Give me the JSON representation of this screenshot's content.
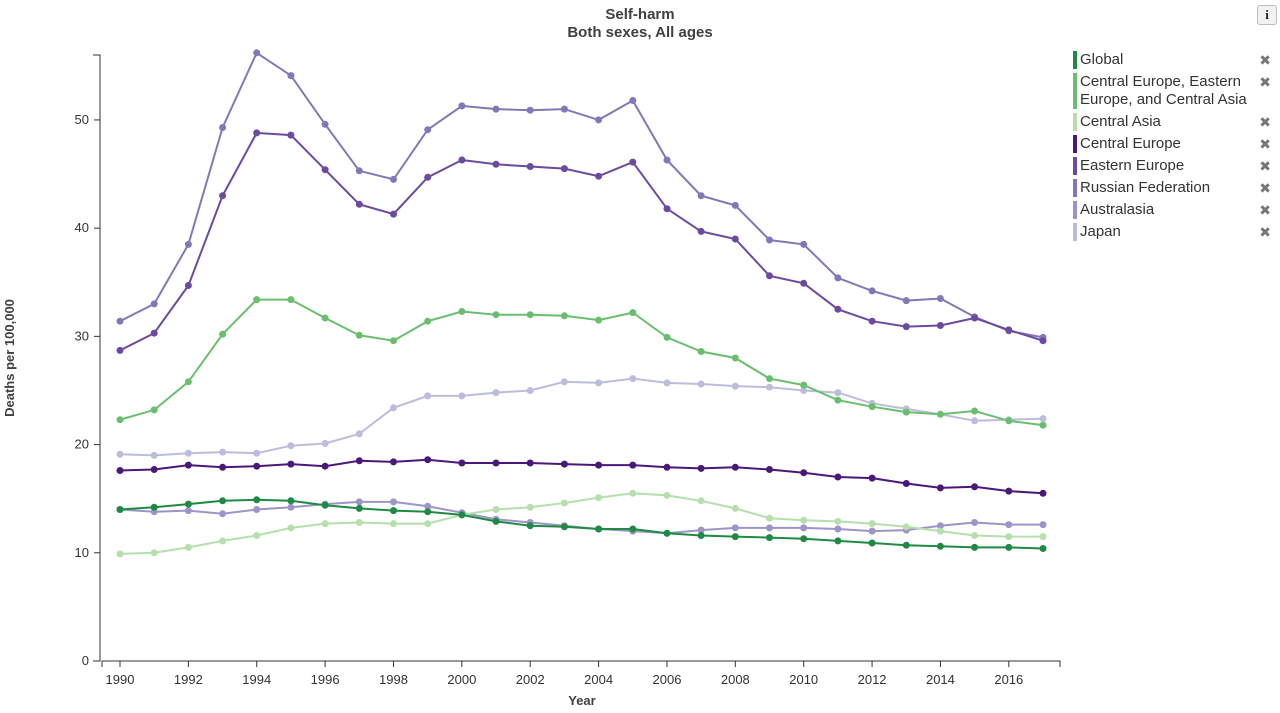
{
  "info_button": "i",
  "remove_symbol": "✖",
  "chart_data": {
    "type": "line",
    "title": "Self-harm",
    "subtitle": "Both sexes, All ages",
    "xlabel": "Year",
    "ylabel": "Deaths per 100,000",
    "xlim": [
      1990,
      2017
    ],
    "ylim": [
      0,
      56
    ],
    "x_ticks": [
      1990,
      1992,
      1994,
      1996,
      1998,
      2000,
      2002,
      2004,
      2006,
      2008,
      2010,
      2012,
      2014,
      2016
    ],
    "y_ticks": [
      0,
      10,
      20,
      30,
      40,
      50
    ],
    "x": [
      1990,
      1991,
      1992,
      1993,
      1994,
      1995,
      1996,
      1997,
      1998,
      1999,
      2000,
      2001,
      2002,
      2003,
      2004,
      2005,
      2006,
      2007,
      2008,
      2009,
      2010,
      2011,
      2012,
      2013,
      2014,
      2015,
      2016,
      2017
    ],
    "grid": false,
    "legend_position": "right",
    "series": [
      {
        "name": "Global",
        "color": "#1e8a44",
        "values": [
          14.0,
          14.2,
          14.5,
          14.8,
          14.9,
          14.8,
          14.4,
          14.1,
          13.9,
          13.8,
          13.5,
          12.9,
          12.5,
          12.4,
          12.2,
          12.2,
          11.8,
          11.6,
          11.5,
          11.4,
          11.3,
          11.1,
          10.9,
          10.7,
          10.6,
          10.5,
          10.5,
          10.4
        ]
      },
      {
        "name": "Central Europe, Eastern Europe, and Central Asia",
        "color": "#6abf6e",
        "values": [
          22.3,
          23.2,
          25.8,
          30.2,
          33.4,
          33.4,
          31.7,
          30.1,
          29.6,
          31.4,
          32.3,
          32.0,
          32.0,
          31.9,
          31.5,
          32.2,
          29.9,
          28.6,
          28.0,
          26.1,
          25.5,
          24.1,
          23.5,
          23.0,
          22.8,
          23.1,
          22.2,
          21.8
        ]
      },
      {
        "name": "Central Asia",
        "color": "#b5e0ac",
        "values": [
          9.9,
          10.0,
          10.5,
          11.1,
          11.6,
          12.3,
          12.7,
          12.8,
          12.7,
          12.7,
          13.5,
          14.0,
          14.2,
          14.6,
          15.1,
          15.5,
          15.3,
          14.8,
          14.1,
          13.2,
          13.0,
          12.9,
          12.7,
          12.4,
          12.0,
          11.6,
          11.5,
          11.5
        ]
      },
      {
        "name": "Central Europe",
        "color": "#4a1878",
        "values": [
          17.6,
          17.7,
          18.1,
          17.9,
          18.0,
          18.2,
          18.0,
          18.5,
          18.4,
          18.6,
          18.3,
          18.3,
          18.3,
          18.2,
          18.1,
          18.1,
          17.9,
          17.8,
          17.9,
          17.7,
          17.4,
          17.0,
          16.9,
          16.4,
          16.0,
          16.1,
          15.7,
          15.5
        ]
      },
      {
        "name": "Eastern Europe",
        "color": "#6b4aa0",
        "values": [
          28.7,
          30.3,
          34.7,
          43.0,
          48.8,
          48.6,
          45.4,
          42.2,
          41.3,
          44.7,
          46.3,
          45.9,
          45.7,
          45.5,
          44.8,
          46.1,
          41.8,
          39.7,
          39.0,
          35.6,
          34.9,
          32.5,
          31.4,
          30.9,
          31.0,
          31.7,
          30.6,
          29.6
        ]
      },
      {
        "name": "Russian Federation",
        "color": "#8178b8",
        "values": [
          31.4,
          33.0,
          38.5,
          49.3,
          56.2,
          54.1,
          49.6,
          45.3,
          44.5,
          49.1,
          51.3,
          51.0,
          50.9,
          51.0,
          50.0,
          51.8,
          46.3,
          43.0,
          42.1,
          38.9,
          38.5,
          35.4,
          34.2,
          33.3,
          33.5,
          31.8,
          30.5,
          29.9
        ]
      },
      {
        "name": "Australasia",
        "color": "#9d94c8",
        "values": [
          14.0,
          13.8,
          13.9,
          13.6,
          14.0,
          14.2,
          14.5,
          14.7,
          14.7,
          14.3,
          13.7,
          13.1,
          12.8,
          12.5,
          12.2,
          12.0,
          11.8,
          12.1,
          12.3,
          12.3,
          12.3,
          12.2,
          12.0,
          12.1,
          12.5,
          12.8,
          12.6,
          12.6
        ]
      },
      {
        "name": "Japan",
        "color": "#bcbddc",
        "values": [
          19.1,
          19.0,
          19.2,
          19.3,
          19.2,
          19.9,
          20.1,
          21.0,
          23.4,
          24.5,
          24.5,
          24.8,
          25.0,
          25.8,
          25.7,
          26.1,
          25.7,
          25.6,
          25.4,
          25.3,
          25.0,
          24.8,
          23.8,
          23.3,
          22.8,
          22.2,
          22.3,
          22.4
        ]
      }
    ]
  }
}
